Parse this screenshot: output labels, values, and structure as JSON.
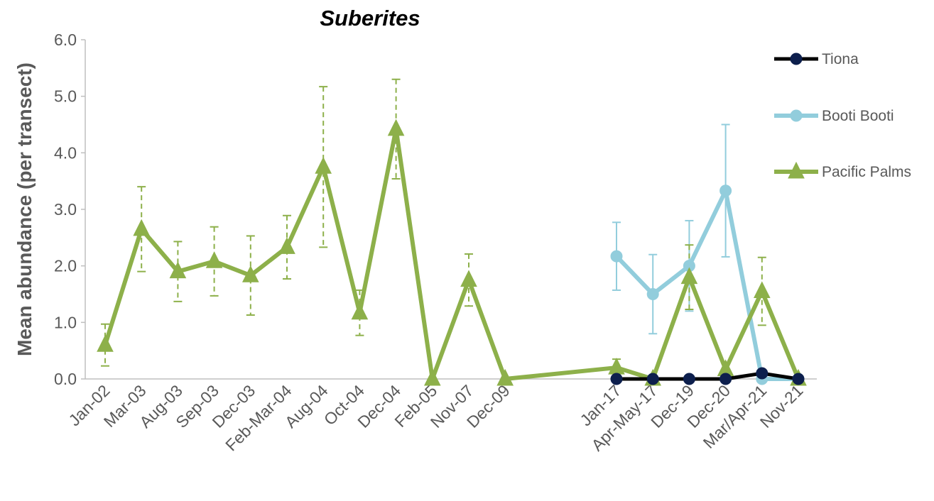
{
  "chart_data": {
    "type": "line",
    "title": "Suberites",
    "xlabel": "",
    "ylabel": "Mean abundance (per transect)",
    "ylim": [
      0,
      6
    ],
    "y_ticks": [
      "0.0",
      "1.0",
      "2.0",
      "3.0",
      "4.0",
      "5.0",
      "6.0"
    ],
    "grid": false,
    "legend_position": "right",
    "categories": [
      "Jan-02",
      "Mar-03",
      "Aug-03",
      "Sep-03",
      "Dec-03",
      "Feb-Mar-04",
      "Aug-04",
      "Oct-04",
      "Dec-04",
      "Feb-05",
      "Nov-07",
      "Dec-09",
      "Jan-17",
      "Apr-May-17",
      "Dec-19",
      "Dec-20",
      "Mar/Apr-21",
      "Nov-21"
    ],
    "series": [
      {
        "name": "Tiona",
        "color": "#000000",
        "marker_color": "#0d1f4d",
        "marker": "circle",
        "values": [
          null,
          null,
          null,
          null,
          null,
          null,
          null,
          null,
          null,
          null,
          null,
          null,
          0.0,
          0.0,
          0.0,
          0.0,
          0.1,
          0.0
        ],
        "error": [
          null,
          null,
          null,
          null,
          null,
          null,
          null,
          null,
          null,
          null,
          null,
          null,
          null,
          null,
          null,
          null,
          null,
          null
        ]
      },
      {
        "name": "Booti Booti",
        "color": "#92cddc",
        "marker": "circle",
        "values": [
          null,
          null,
          null,
          null,
          null,
          null,
          null,
          null,
          null,
          null,
          null,
          null,
          2.17,
          1.5,
          2.0,
          3.33,
          0.0,
          0.0
        ],
        "error": [
          null,
          null,
          null,
          null,
          null,
          null,
          null,
          null,
          null,
          null,
          null,
          null,
          0.6,
          0.7,
          0.8,
          1.17,
          null,
          null
        ]
      },
      {
        "name": "Pacific Palms",
        "color": "#8db04a",
        "marker": "triangle",
        "values": [
          0.6,
          2.65,
          1.9,
          2.08,
          1.83,
          2.33,
          3.75,
          1.17,
          4.42,
          0.0,
          1.75,
          0.0,
          0.2,
          0.0,
          1.8,
          0.17,
          1.55,
          0.0
        ],
        "error": [
          0.37,
          0.75,
          0.53,
          0.61,
          0.7,
          0.56,
          1.42,
          0.4,
          0.88,
          null,
          0.46,
          null,
          0.15,
          null,
          0.57,
          null,
          0.6,
          null
        ]
      }
    ]
  }
}
